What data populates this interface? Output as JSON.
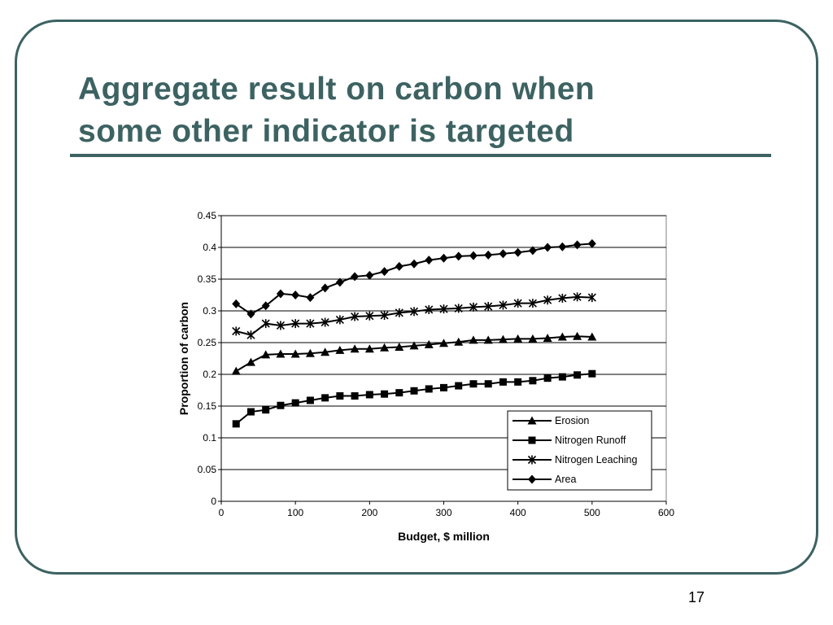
{
  "slide": {
    "title_line1": "Aggregate result on carbon when",
    "title_line2": "some other indicator is targeted",
    "page_number": "17",
    "accent_color": "#3d6262"
  },
  "chart_data": {
    "type": "line",
    "title": "",
    "xlabel": "Budget, $ million",
    "ylabel": "Proportion of carbon",
    "xlim": [
      0,
      600
    ],
    "ylim": [
      0,
      0.45
    ],
    "x_ticks": [
      0,
      100,
      200,
      300,
      400,
      500,
      600
    ],
    "y_ticks": [
      0,
      0.05,
      0.1,
      0.15,
      0.2,
      0.25,
      0.3,
      0.35,
      0.4,
      0.45
    ],
    "grid": "horizontal",
    "legend_position": "bottom-right",
    "x": [
      20,
      40,
      60,
      80,
      100,
      120,
      140,
      160,
      180,
      200,
      220,
      240,
      260,
      280,
      300,
      320,
      340,
      360,
      380,
      400,
      420,
      440,
      460,
      480,
      500
    ],
    "series": [
      {
        "name": "Erosion",
        "marker": "triangle",
        "values": [
          0.205,
          0.219,
          0.231,
          0.232,
          0.232,
          0.233,
          0.235,
          0.238,
          0.24,
          0.24,
          0.242,
          0.243,
          0.245,
          0.247,
          0.249,
          0.251,
          0.254,
          0.254,
          0.255,
          0.256,
          0.256,
          0.257,
          0.259,
          0.26,
          0.259
        ]
      },
      {
        "name": "Nitrogen Runoff",
        "marker": "square",
        "values": [
          0.122,
          0.141,
          0.144,
          0.151,
          0.155,
          0.159,
          0.163,
          0.166,
          0.166,
          0.168,
          0.169,
          0.171,
          0.174,
          0.177,
          0.179,
          0.182,
          0.185,
          0.185,
          0.188,
          0.188,
          0.19,
          0.194,
          0.196,
          0.199,
          0.201
        ]
      },
      {
        "name": "Nitrogen Leaching",
        "marker": "star",
        "values": [
          0.268,
          0.262,
          0.28,
          0.277,
          0.28,
          0.28,
          0.282,
          0.286,
          0.291,
          0.292,
          0.293,
          0.297,
          0.299,
          0.302,
          0.303,
          0.304,
          0.306,
          0.307,
          0.309,
          0.312,
          0.312,
          0.317,
          0.32,
          0.322,
          0.321
        ]
      },
      {
        "name": "Area",
        "marker": "diamond",
        "values": [
          0.311,
          0.295,
          0.308,
          0.327,
          0.325,
          0.321,
          0.336,
          0.345,
          0.354,
          0.356,
          0.362,
          0.37,
          0.374,
          0.38,
          0.383,
          0.386,
          0.387,
          0.388,
          0.39,
          0.392,
          0.395,
          0.4,
          0.401,
          0.404,
          0.406
        ]
      }
    ]
  }
}
